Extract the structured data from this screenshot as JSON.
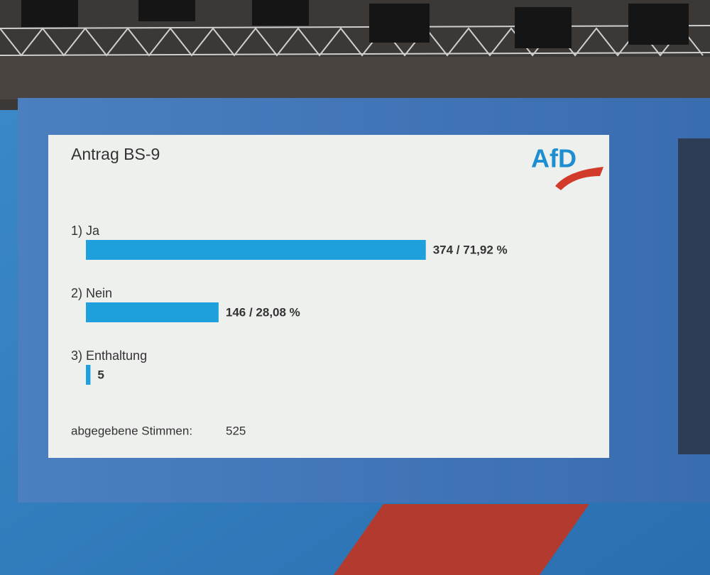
{
  "chart_data": {
    "type": "hbar",
    "title": "Antrag BS-9",
    "logo": "AfD",
    "categories": [
      "1) Ja",
      "2) Nein",
      "3) Enthaltung"
    ],
    "values": [
      374,
      146,
      5
    ],
    "value_labels": [
      "374 / 71,92 %",
      "146 / 28,08 %",
      "5"
    ],
    "color": "#1ea0dc",
    "footer_label": "abgegebene Stimmen:",
    "total": "525"
  }
}
